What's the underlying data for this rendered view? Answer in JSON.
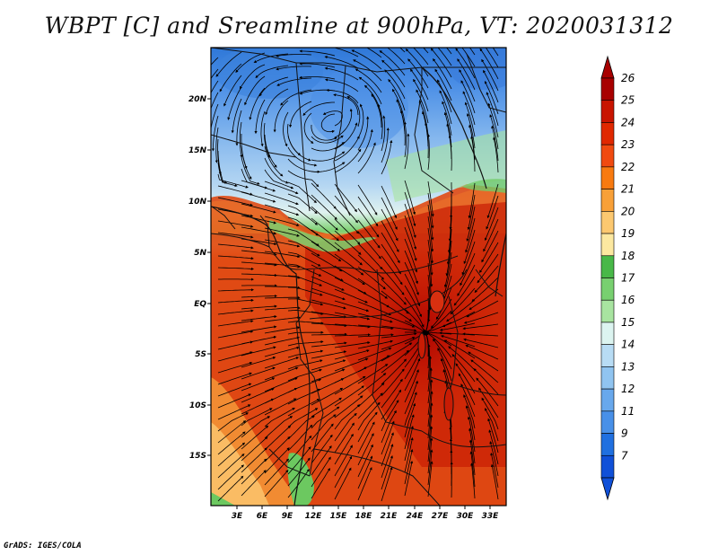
{
  "title": "WBPT [C] and Sreamline at 900hPa, VT: 2020031312",
  "footer": "GrADS: IGES/COLA",
  "map": {
    "lat_ticks": [
      "20N",
      "15N",
      "10N",
      "5N",
      "EQ",
      "5S",
      "10S",
      "15S"
    ],
    "lon_ticks": [
      "3E",
      "6E",
      "9E",
      "12E",
      "15E",
      "18E",
      "21E",
      "24E",
      "27E",
      "30E",
      "33E"
    ]
  },
  "colorbar": {
    "labels": [
      "26",
      "25",
      "24",
      "23",
      "22",
      "21",
      "20",
      "19",
      "18",
      "17",
      "16",
      "15",
      "14",
      "13",
      "12",
      "11",
      "9",
      "7"
    ],
    "colors": [
      "#a80000",
      "#c81400",
      "#e02800",
      "#f04a10",
      "#f87a10",
      "#f8a038",
      "#fcc870",
      "#fce8a0",
      "#48b848",
      "#78d070",
      "#a8e4a0",
      "#dcf4f0",
      "#b8dcf4",
      "#90c4f0",
      "#68a8ec",
      "#4890e8",
      "#2070e0",
      "#1050d8"
    ]
  }
}
